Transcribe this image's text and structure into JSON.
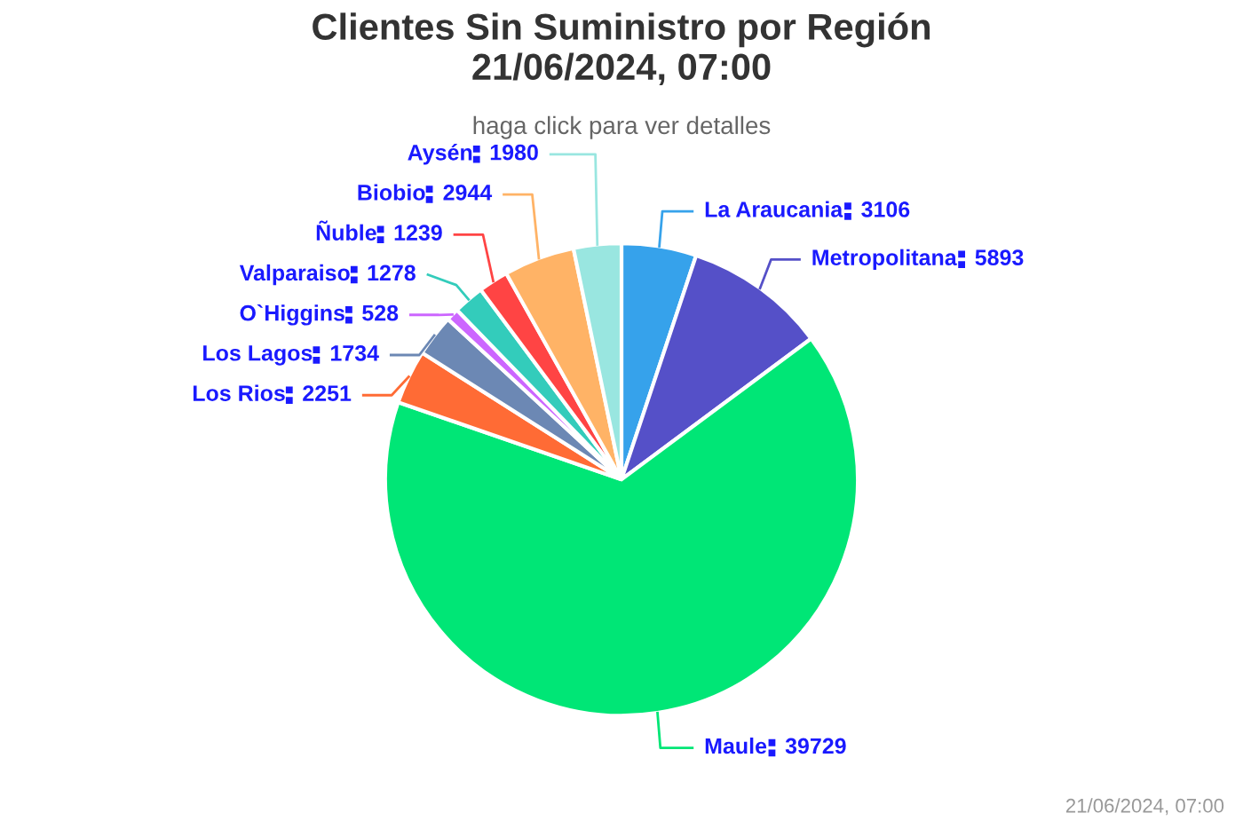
{
  "chart_data": {
    "type": "pie",
    "title": "Clientes Sin Suministro por Región\n21/06/2024, 07:00",
    "subtitle": "haga click para ver detalles",
    "categories": [
      "La Araucania",
      "Metropolitana",
      "Maule",
      "Los Rios",
      "Los Lagos",
      "O`Higgins",
      "Valparaiso",
      "Ñuble",
      "Biobio",
      "Aysén"
    ],
    "values": [
      3106,
      5893,
      39729,
      2251,
      1734,
      528,
      1278,
      1239,
      2944,
      1980
    ],
    "colors": [
      "#36a2eb",
      "#5550c8",
      "#00e676",
      "#ff6b35",
      "#6c88b4",
      "#cc66ff",
      "#33ccbb",
      "#ff4444",
      "#ffb366",
      "#99e6e0"
    ],
    "data_labels": true,
    "annotations": [
      "21/06/2024, 07:00"
    ]
  }
}
